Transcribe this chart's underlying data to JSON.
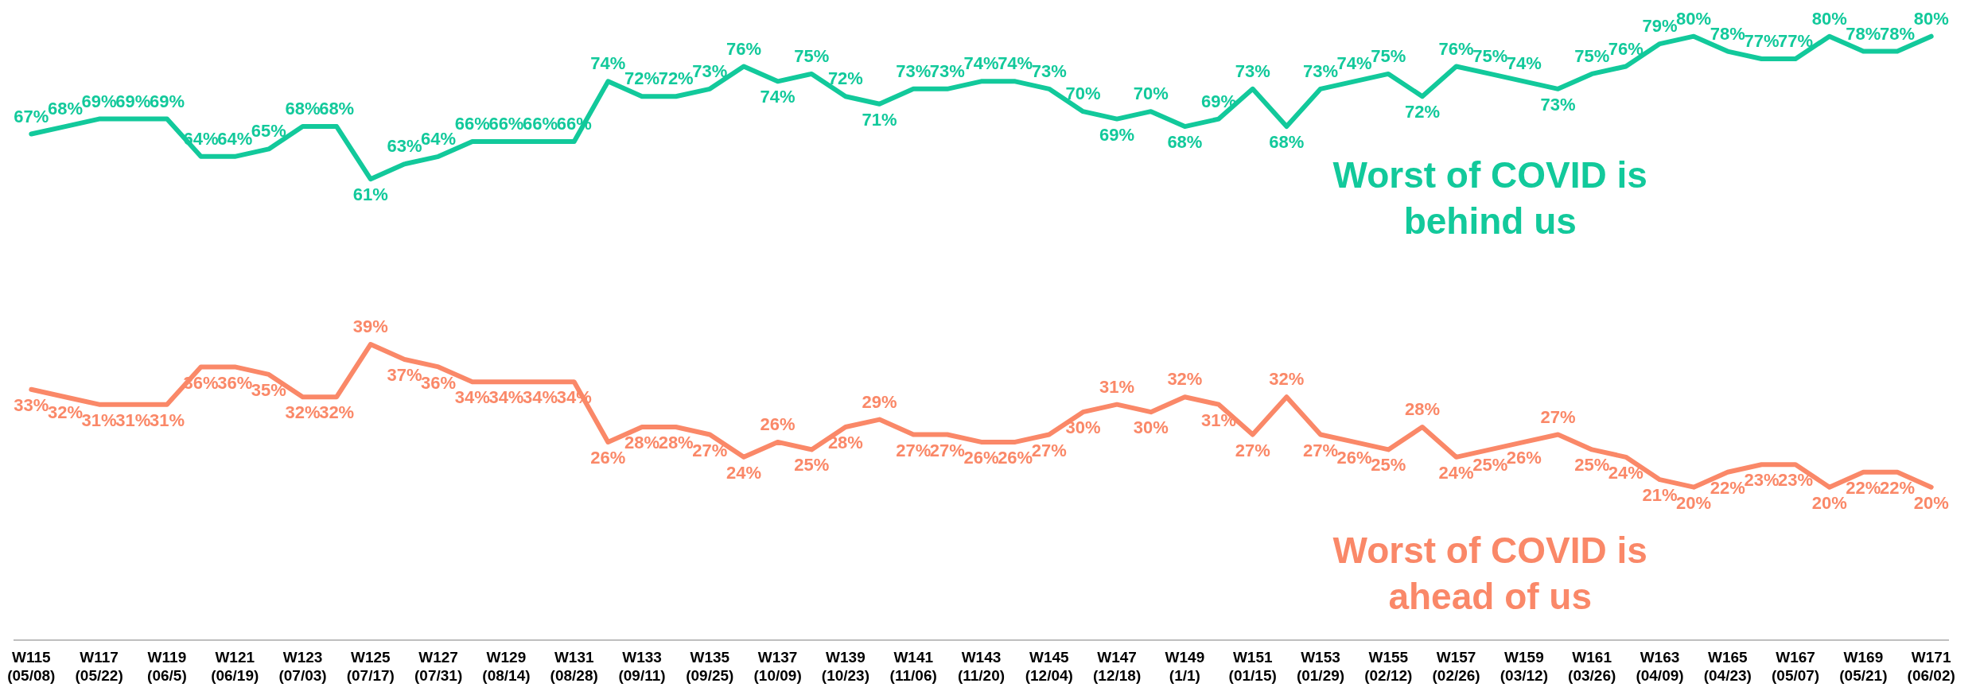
{
  "chart_data": {
    "type": "line",
    "categories": [
      "W115\n(05/08)",
      null,
      "W117\n(05/22)",
      null,
      "W119\n(06/5)",
      null,
      "W121\n(06/19)",
      null,
      "W123\n(07/03)",
      null,
      "W125\n(07/17)",
      null,
      "W127\n(07/31)",
      null,
      "W129\n(08/14)",
      null,
      "W131\n(08/28)",
      null,
      "W133\n(09/11)",
      null,
      "W135\n(09/25)",
      null,
      "W137\n(10/09)",
      null,
      "W139\n(10/23)",
      null,
      "W141\n(11/06)",
      null,
      "W143\n(11/20)",
      null,
      "W145\n(12/04)",
      null,
      "W147\n(12/18)",
      null,
      "W149\n(1/1)",
      null,
      "W151\n(01/15)",
      null,
      "W153\n(01/29)",
      null,
      "W155\n(02/12)",
      null,
      "W157\n(02/26)",
      null,
      "W159\n(03/12)",
      null,
      "W161\n(03/26)",
      null,
      "W163\n(04/09)",
      null,
      "W165\n(04/23)",
      null,
      "W167\n(05/07)",
      null,
      "W169\n(05/21)",
      null,
      "W171\n(06/02)"
    ],
    "series": [
      {
        "name": "Worst of COVID is behind us",
        "color": "#12c99b",
        "values": [
          67,
          68,
          69,
          69,
          69,
          64,
          64,
          65,
          68,
          68,
          61,
          63,
          64,
          66,
          66,
          66,
          66,
          74,
          72,
          72,
          73,
          76,
          74,
          75,
          72,
          71,
          73,
          73,
          74,
          74,
          73,
          70,
          69,
          70,
          68,
          69,
          73,
          68,
          73,
          74,
          75,
          72,
          76,
          75,
          74,
          73,
          75,
          76,
          79,
          80,
          78,
          77,
          77,
          80,
          78,
          78,
          80
        ],
        "value_labels": [
          "67%",
          "68%",
          "69%",
          "69%",
          "69%",
          "64%",
          "64%",
          "65%",
          "68%",
          "68%",
          "61%",
          "63%",
          "64%",
          "66%",
          "66%",
          "66%",
          "66%",
          "74%",
          "72%",
          "72%",
          "73%",
          "76%",
          "74%",
          "75%",
          "72%",
          "71%",
          "73%",
          "73%",
          "74%",
          "74%",
          "73%",
          "70%",
          "69%",
          "70%",
          "68%",
          "69%",
          "73%",
          "68%",
          "73%",
          "74%",
          "75%",
          "72%",
          "76%",
          "75%",
          "74%",
          "73%",
          "75%",
          "76%",
          "79%",
          "80%",
          "78%",
          "77%",
          "77%",
          "80%",
          "78%",
          "78%",
          "80%"
        ]
      },
      {
        "name": "Worst of COVID is ahead of us",
        "color": "#fa8868",
        "values": [
          33,
          32,
          31,
          31,
          31,
          36,
          36,
          35,
          32,
          32,
          39,
          37,
          36,
          34,
          34,
          34,
          34,
          26,
          28,
          28,
          27,
          24,
          26,
          25,
          28,
          29,
          27,
          27,
          26,
          26,
          27,
          30,
          31,
          30,
          32,
          31,
          27,
          32,
          27,
          26,
          25,
          28,
          24,
          25,
          26,
          27,
          25,
          24,
          21,
          20,
          22,
          23,
          23,
          20,
          22,
          22,
          20
        ],
        "value_labels": [
          "33%",
          "32%",
          "31%",
          "31%",
          "31%",
          "36%",
          "36%",
          "35%",
          "32%",
          "32%",
          "39%",
          "37%",
          "36%",
          "34%",
          "34%",
          "34%",
          "34%",
          "26%",
          "28%",
          "28%",
          "27%",
          "24%",
          "26%",
          "25%",
          "28%",
          "29%",
          "27%",
          "27%",
          "26%",
          "26%",
          "27%",
          "30%",
          "31%",
          "30%",
          "32%",
          "31%",
          "27%",
          "32%",
          "27%",
          "26%",
          "25%",
          "28%",
          "24%",
          "25%",
          "26%",
          "27%",
          "25%",
          "24%",
          "21%",
          "20%",
          "22%",
          "23%",
          "23%",
          "20%",
          "22%",
          "22%",
          "20%"
        ]
      }
    ],
    "relative": false,
    "grid": false,
    "legend": false,
    "marker": "none",
    "line_style": "solid"
  }
}
